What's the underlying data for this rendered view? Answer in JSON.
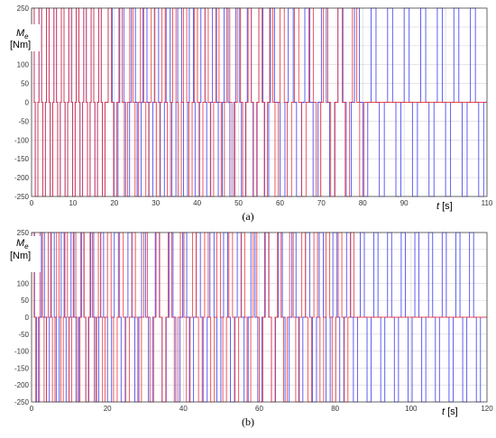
{
  "colors": {
    "series_a": "#e8363c",
    "series_b": "#3c3cf0",
    "grid": "#d4d4d4",
    "frame": "#444444"
  },
  "chart_data": [
    {
      "type": "line",
      "caption": "(a)",
      "ylabel": "M",
      "ylabel_sub": "e",
      "ylabel_unit": "[Nm]",
      "xlabel": "t",
      "xlabel_unit": "[s]",
      "xlim": [
        0,
        110
      ],
      "ylim": [
        -250,
        250
      ],
      "xticks": [
        0,
        10,
        20,
        30,
        40,
        50,
        60,
        70,
        80,
        90,
        100,
        110
      ],
      "yticks": [
        -250,
        -200,
        -150,
        -100,
        -50,
        0,
        50,
        100,
        150,
        200,
        250
      ],
      "grid": true,
      "series": [
        {
          "color": "#3c3cf0",
          "waveform": "alternating square pulses",
          "phases": [
            {
              "t_start": 0,
              "t_end": 18.5,
              "period": 1.8,
              "amplitude": 250,
              "duty": 0.35
            },
            {
              "t_start": 18.5,
              "t_end": 60,
              "period": 2.8,
              "amplitude": 250,
              "duty": 0.35
            },
            {
              "t_start": 60,
              "t_end": 110,
              "period": 4.0,
              "amplitude": 250,
              "duty": 0.3
            }
          ]
        },
        {
          "color": "#e8363c",
          "waveform": "alternating square pulses",
          "phases": [
            {
              "t_start": 0,
              "t_end": 18.5,
              "period": 1.8,
              "amplitude": 250,
              "duty": 0.35
            },
            {
              "t_start": 18.5,
              "t_end": 60,
              "period": 2.6,
              "amplitude": 250,
              "duty": 0.3
            },
            {
              "t_start": 60,
              "t_end": 82,
              "period": 3.5,
              "amplitude": 250,
              "duty": 0.3
            }
          ]
        }
      ]
    },
    {
      "type": "line",
      "caption": "(b)",
      "ylabel": "M",
      "ylabel_sub": "e",
      "ylabel_unit": "[Nm]",
      "xlabel": "t",
      "xlabel_unit": "[s]",
      "xlim": [
        0,
        120
      ],
      "ylim": [
        -250,
        250
      ],
      "xticks": [
        0,
        20,
        40,
        60,
        80,
        100,
        120
      ],
      "yticks": [
        -250,
        -200,
        -150,
        -100,
        -50,
        0,
        50,
        100,
        150,
        200,
        250
      ],
      "grid": true,
      "series": [
        {
          "color": "#3c3cf0",
          "waveform": "alternating square pulses",
          "phases": [
            {
              "t_start": 0,
              "t_end": 20,
              "period": 2.6,
              "amplitude": 250,
              "duty": 0.3
            },
            {
              "t_start": 20,
              "t_end": 120,
              "period": 3.6,
              "amplitude": 250,
              "duty": 0.3
            }
          ]
        },
        {
          "color": "#e8363c",
          "waveform": "alternating square pulses",
          "phases": [
            {
              "t_start": 0,
              "t_end": 20,
              "period": 2.2,
              "amplitude": 250,
              "duty": 0.3
            },
            {
              "t_start": 20,
              "t_end": 86,
              "period": 3.2,
              "amplitude": 250,
              "duty": 0.3
            }
          ]
        }
      ]
    }
  ]
}
